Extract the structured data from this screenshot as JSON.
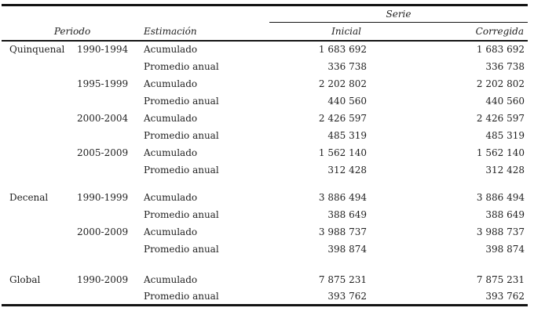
{
  "table": {
    "headers": {
      "periodo": "Periodo",
      "estimacion": "Estimación",
      "serie": "Serie",
      "inicial": "Inicial",
      "corregida": "Corregida"
    },
    "groups": [
      {
        "name": "Quinquenal",
        "periods": [
          {
            "period": "1990-1994",
            "rows": [
              {
                "estimation": "Acumulado",
                "inicial": "1 683 692",
                "corregida": "1 683 692"
              },
              {
                "estimation": "Promedio anual",
                "inicial": "336 738",
                "corregida": "336 738"
              }
            ]
          },
          {
            "period": "1995-1999",
            "rows": [
              {
                "estimation": "Acumulado",
                "inicial": "2 202 802",
                "corregida": "2 202 802"
              },
              {
                "estimation": "Promedio anual",
                "inicial": "440 560",
                "corregida": "440 560"
              }
            ]
          },
          {
            "period": "2000-2004",
            "rows": [
              {
                "estimation": "Acumulado",
                "inicial": "2 426 597",
                "corregida": "2 426 597"
              },
              {
                "estimation": "Promedio anual",
                "inicial": "485 319",
                "corregida": "485 319"
              }
            ]
          },
          {
            "period": "2005-2009",
            "rows": [
              {
                "estimation": "Acumulado",
                "inicial": "1 562 140",
                "corregida": "1 562 140"
              },
              {
                "estimation": "Promedio anual",
                "inicial": "312 428",
                "corregida": "312 428"
              }
            ]
          }
        ]
      },
      {
        "name": "Decenal",
        "periods": [
          {
            "period": "1990-1999",
            "rows": [
              {
                "estimation": "Acumulado",
                "inicial": "3 886 494",
                "corregida": "3 886 494"
              },
              {
                "estimation": "Promedio anual",
                "inicial": "388 649",
                "corregida": "388 649"
              }
            ]
          },
          {
            "period": "2000-2009",
            "rows": [
              {
                "estimation": "Acumulado",
                "inicial": "3 988 737",
                "corregida": "3 988 737"
              },
              {
                "estimation": "Promedio anual",
                "inicial": "398 874",
                "corregida": "398 874"
              }
            ]
          }
        ]
      },
      {
        "name": "Global",
        "periods": [
          {
            "period": "1990-2009",
            "rows": [
              {
                "estimation": "Acumulado",
                "inicial": "7 875 231",
                "corregida": "7 875 231"
              },
              {
                "estimation": "Promedio anual",
                "inicial": "393 762",
                "corregida": "393 762"
              }
            ]
          }
        ]
      }
    ]
  }
}
